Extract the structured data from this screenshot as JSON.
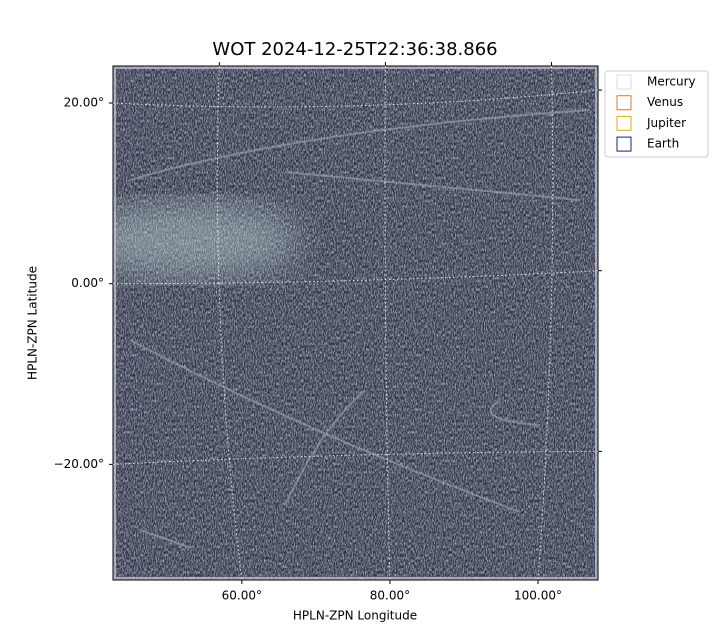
{
  "chart_data": {
    "type": "image",
    "title": "WOT 2024-12-25T22:36:38.866",
    "x_label": "HPLN-ZPN Longitude",
    "y_label": "HPLN-ZPN Latitude",
    "xlim": [
      42.6,
      108.1
    ],
    "ylim": [
      -32.8,
      24.1
    ],
    "xticks": [
      {
        "value": 60,
        "label": "60.00°"
      },
      {
        "value": 80,
        "label": "80.00°"
      },
      {
        "value": 100,
        "label": "100.00°"
      }
    ],
    "yticks": [
      {
        "value": -20,
        "label": "−20.00°"
      },
      {
        "value": 0,
        "label": "0.00°"
      },
      {
        "value": 20,
        "label": "20.00°"
      }
    ],
    "grid": true,
    "legend_position": "outside-upper-right",
    "legend": [
      {
        "name": "Mercury",
        "color": "#dddddd"
      },
      {
        "name": "Venus",
        "color": "#d9773a"
      },
      {
        "name": "Jupiter",
        "color": "#e2a91c"
      },
      {
        "name": "Earth",
        "color": "#1c1c7a"
      }
    ]
  }
}
